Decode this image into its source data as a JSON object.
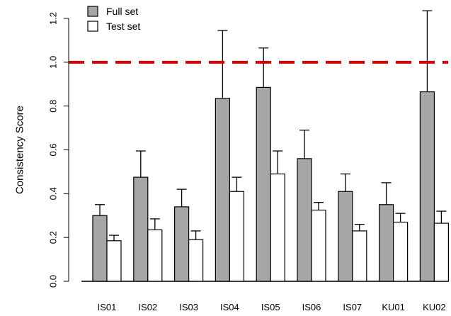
{
  "chart_data": {
    "type": "bar",
    "ylabel": "Consistency Score",
    "xlabel": "",
    "title": "",
    "ylim": [
      0.0,
      1.25
    ],
    "yticks": [
      "0.0",
      "0.2",
      "0.4",
      "0.6",
      "0.8",
      "1.0",
      "1.2"
    ],
    "categories": [
      "IS01",
      "IS02",
      "IS03",
      "IS04",
      "IS05",
      "IS06",
      "IS07",
      "KU01",
      "KU02"
    ],
    "series": [
      {
        "name": "Full set",
        "color": "#a6a6a6",
        "values": [
          0.3,
          0.475,
          0.34,
          0.835,
          0.885,
          0.56,
          0.41,
          0.35,
          0.865
        ],
        "errors": [
          0.05,
          0.12,
          0.08,
          0.31,
          0.18,
          0.13,
          0.08,
          0.1,
          0.37
        ]
      },
      {
        "name": "Test set",
        "color": "#ffffff",
        "values": [
          0.185,
          0.235,
          0.19,
          0.41,
          0.49,
          0.325,
          0.23,
          0.27,
          0.265
        ],
        "errors": [
          0.025,
          0.05,
          0.04,
          0.065,
          0.105,
          0.035,
          0.03,
          0.04,
          0.055
        ]
      }
    ],
    "reference_line": {
      "value": 1.0,
      "color": "#dd0000",
      "style": "dashed"
    },
    "legend": {
      "position": "top-left"
    },
    "grid": false
  }
}
